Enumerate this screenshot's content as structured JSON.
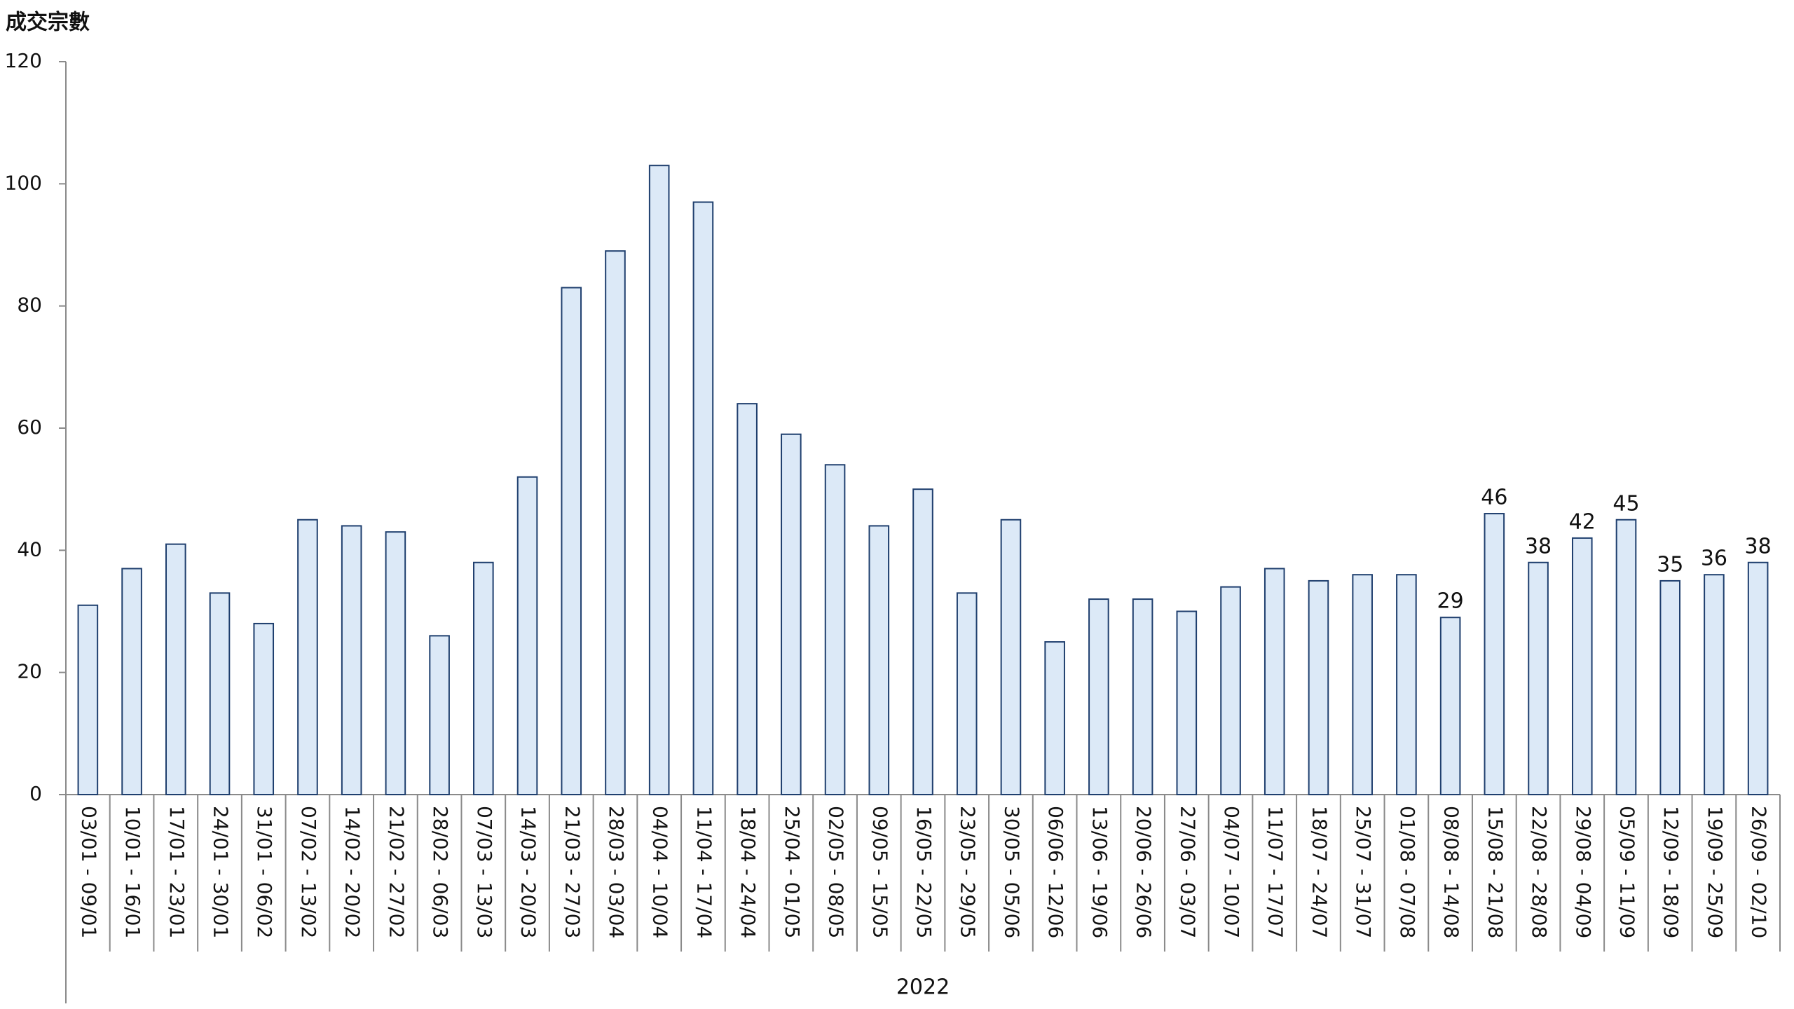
{
  "chart_data": {
    "type": "bar",
    "y_axis_title": "成交宗數",
    "group_label": "2022",
    "categories": [
      "03/01 - 09/01",
      "10/01 - 16/01",
      "17/01 - 23/01",
      "24/01 - 30/01",
      "31/01 - 06/02",
      "07/02 - 13/02",
      "14/02 - 20/02",
      "21/02 - 27/02",
      "28/02 - 06/03",
      "07/03 - 13/03",
      "14/03 - 20/03",
      "21/03 - 27/03",
      "28/03 - 03/04",
      "04/04 - 10/04",
      "11/04 - 17/04",
      "18/04 - 24/04",
      "25/04 - 01/05",
      "02/05 - 08/05",
      "09/05 - 15/05",
      "16/05 - 22/05",
      "23/05 - 29/05",
      "30/05 - 05/06",
      "06/06 - 12/06",
      "13/06 - 19/06",
      "20/06 - 26/06",
      "27/06 - 03/07",
      "04/07 - 10/07",
      "11/07 - 17/07",
      "18/07 - 24/07",
      "25/07 - 31/07",
      "01/08 - 07/08",
      "08/08 - 14/08",
      "15/08 - 21/08",
      "22/08 - 28/08",
      "29/08 - 04/09",
      "05/09 - 11/09",
      "12/09 - 18/09",
      "19/09 - 25/09",
      "26/09 - 02/10"
    ],
    "values": [
      31,
      37,
      41,
      33,
      28,
      45,
      44,
      43,
      26,
      38,
      52,
      83,
      89,
      103,
      97,
      64,
      59,
      54,
      44,
      50,
      33,
      45,
      25,
      32,
      32,
      30,
      34,
      37,
      35,
      36,
      36,
      29,
      46,
      38,
      42,
      45,
      35,
      36,
      38
    ],
    "value_labels": [
      null,
      null,
      null,
      null,
      null,
      null,
      null,
      null,
      null,
      null,
      null,
      null,
      null,
      null,
      null,
      null,
      null,
      null,
      null,
      null,
      null,
      null,
      null,
      null,
      null,
      null,
      null,
      null,
      null,
      null,
      null,
      "29",
      "46",
      "38",
      "42",
      "45",
      "35",
      "36",
      "38"
    ],
    "color": "#dce9f7",
    "edge_color": "#1f3f6e",
    "ylim": [
      0,
      120
    ],
    "yticks": [
      0,
      20,
      40,
      60,
      80,
      100,
      120
    ]
  }
}
